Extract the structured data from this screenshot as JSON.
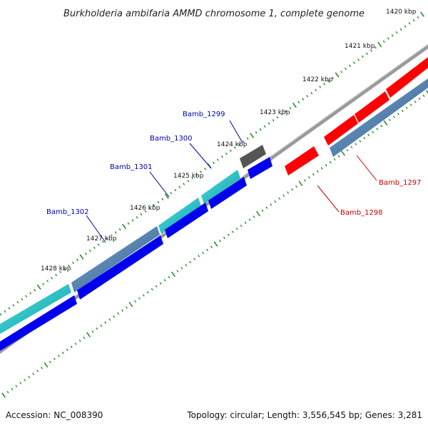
{
  "title": "Burkholderia ambifaria AMMD chromosome 1, complete genome",
  "ticks": [
    {
      "label": "1420 kbp"
    },
    {
      "label": "1421 kbp"
    },
    {
      "label": "1422 kbp"
    },
    {
      "label": "1423 kbp"
    },
    {
      "label": "1424 kbp"
    },
    {
      "label": "1425 kbp"
    },
    {
      "label": "1426 kbp"
    },
    {
      "label": "1427 kbp"
    },
    {
      "label": "1428 kbp"
    }
  ],
  "genes": [
    {
      "name": "Bamb_1297",
      "color": "#cc0000"
    },
    {
      "name": "Bamb_1298",
      "color": "#cc0000"
    },
    {
      "name": "Bamb_1299",
      "color": "#0000aa"
    },
    {
      "name": "Bamb_1300",
      "color": "#0000aa"
    },
    {
      "name": "Bamb_1301",
      "color": "#0000aa"
    },
    {
      "name": "Bamb_1302",
      "color": "#0000aa"
    }
  ],
  "colors": {
    "tick": "#2e8b2e",
    "backbone": "#808080",
    "red_feature": "#ff0000",
    "blue_feature": "#0000ee",
    "steelblue_feature": "#4682b4",
    "cyan_feature": "#20c0c0",
    "dark_feature": "#555555"
  },
  "footer": {
    "accession": "Accession: NC_008390",
    "stats": "Topology: circular; Length: 3,556,545 bp; Genes: 3,281"
  }
}
